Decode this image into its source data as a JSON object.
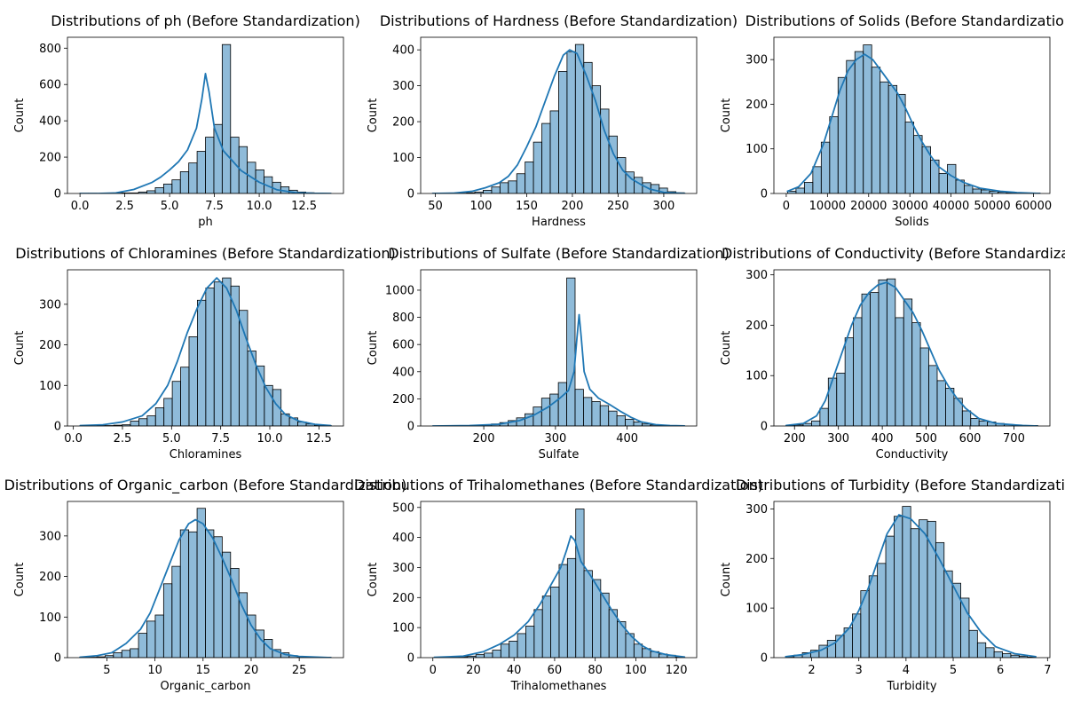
{
  "figure": {
    "background": "#ffffff",
    "bar_fill": "#1f77b4",
    "bar_alpha": 0.5,
    "bar_edge": "#000000",
    "kde_color": "#1f77b4"
  },
  "chart_data": [
    {
      "type": "bar",
      "title": "Distributions of ph (Before Standardization)",
      "xlabel": "ph",
      "ylabel": "Count",
      "xlim": [
        -0.7,
        14.7
      ],
      "ylim": [
        0,
        860
      ],
      "xticks": [
        0.0,
        2.5,
        5.0,
        7.5,
        10.0,
        12.5
      ],
      "xtick_labels": [
        "0.0",
        "2.5",
        "5.0",
        "7.5",
        "10.0",
        "12.5"
      ],
      "yticks": [
        0,
        200,
        400,
        600,
        800
      ],
      "bins": {
        "start": 0.0,
        "width": 0.4667
      },
      "values": [
        1,
        1,
        0,
        2,
        2,
        3,
        3,
        8,
        15,
        32,
        52,
        75,
        120,
        168,
        232,
        310,
        380,
        820,
        310,
        258,
        172,
        130,
        92,
        62,
        37,
        18,
        8,
        4,
        2,
        1
      ],
      "kde": [
        [
          0,
          0
        ],
        [
          1,
          0
        ],
        [
          2,
          3
        ],
        [
          3,
          22
        ],
        [
          4,
          60
        ],
        [
          4.5,
          90
        ],
        [
          5,
          130
        ],
        [
          5.5,
          175
        ],
        [
          6,
          240
        ],
        [
          6.5,
          360
        ],
        [
          6.8,
          520
        ],
        [
          7,
          660
        ],
        [
          7.2,
          560
        ],
        [
          7.5,
          360
        ],
        [
          8,
          235
        ],
        [
          8.5,
          180
        ],
        [
          9,
          125
        ],
        [
          10,
          62
        ],
        [
          11,
          20
        ],
        [
          12,
          5
        ],
        [
          13,
          1
        ],
        [
          14,
          0
        ]
      ]
    },
    {
      "type": "bar",
      "title": "Distributions of Hardness (Before Standardization)",
      "xlabel": "Hardness",
      "ylabel": "Count",
      "xlim": [
        34,
        336
      ],
      "ylim": [
        0,
        435
      ],
      "xticks": [
        50,
        100,
        150,
        200,
        250,
        300
      ],
      "xtick_labels": [
        "50",
        "100",
        "150",
        "200",
        "250",
        "300"
      ],
      "yticks": [
        0,
        100,
        200,
        300,
        400
      ],
      "bins": {
        "start": 47.4,
        "width": 9.169
      },
      "values": [
        1,
        0,
        1,
        1,
        2,
        4,
        9,
        18,
        30,
        35,
        55,
        88,
        143,
        195,
        230,
        340,
        395,
        415,
        365,
        300,
        235,
        160,
        100,
        60,
        45,
        30,
        25,
        15,
        5,
        2
      ],
      "kde": [
        [
          47,
          0
        ],
        [
          70,
          1
        ],
        [
          90,
          6
        ],
        [
          105,
          16
        ],
        [
          120,
          30
        ],
        [
          130,
          48
        ],
        [
          140,
          80
        ],
        [
          150,
          130
        ],
        [
          160,
          185
        ],
        [
          170,
          255
        ],
        [
          180,
          325
        ],
        [
          190,
          385
        ],
        [
          197,
          400
        ],
        [
          205,
          390
        ],
        [
          215,
          330
        ],
        [
          225,
          260
        ],
        [
          235,
          175
        ],
        [
          245,
          110
        ],
        [
          255,
          65
        ],
        [
          265,
          40
        ],
        [
          275,
          25
        ],
        [
          285,
          12
        ],
        [
          300,
          3
        ],
        [
          323,
          0
        ]
      ]
    },
    {
      "type": "bar",
      "title": "Distributions of Solids (Before Standardization)",
      "xlabel": "Solids",
      "ylabel": "Count",
      "xlim": [
        -3000,
        64000
      ],
      "ylim": [
        0,
        350
      ],
      "xticks": [
        0,
        10000,
        20000,
        30000,
        40000,
        50000,
        60000
      ],
      "xtick_labels": [
        "0",
        "10000",
        "20000",
        "30000",
        "40000",
        "50000",
        "60000"
      ],
      "yticks": [
        0,
        100,
        200,
        300
      ],
      "bins": {
        "start": 320,
        "width": 2042
      },
      "values": [
        5,
        12,
        25,
        60,
        115,
        172,
        260,
        298,
        318,
        333,
        283,
        250,
        242,
        222,
        160,
        130,
        105,
        75,
        45,
        65,
        30,
        18,
        10,
        8,
        5,
        3,
        2,
        1,
        1,
        1
      ],
      "kde": [
        [
          300,
          5
        ],
        [
          3000,
          15
        ],
        [
          6000,
          45
        ],
        [
          9000,
          110
        ],
        [
          11000,
          170
        ],
        [
          13000,
          230
        ],
        [
          15000,
          275
        ],
        [
          17000,
          300
        ],
        [
          19000,
          312
        ],
        [
          21000,
          300
        ],
        [
          23000,
          275
        ],
        [
          25000,
          250
        ],
        [
          27000,
          225
        ],
        [
          29000,
          190
        ],
        [
          31000,
          150
        ],
        [
          33000,
          115
        ],
        [
          35000,
          85
        ],
        [
          37000,
          60
        ],
        [
          40000,
          40
        ],
        [
          43000,
          25
        ],
        [
          47000,
          12
        ],
        [
          52000,
          5
        ],
        [
          56000,
          2
        ],
        [
          61600,
          0
        ]
      ]
    },
    {
      "type": "bar",
      "title": "Distributions of Chloramines (Before Standardization)",
      "xlabel": "Chloramines",
      "ylabel": "Count",
      "xlim": [
        -0.3,
        13.75
      ],
      "ylim": [
        0,
        385
      ],
      "xticks": [
        0.0,
        2.5,
        5.0,
        7.5,
        10.0,
        12.5
      ],
      "xtick_labels": [
        "0.0",
        "2.5",
        "5.0",
        "7.5",
        "10.0",
        "12.5"
      ],
      "yticks": [
        0,
        100,
        200,
        300
      ],
      "bins": {
        "start": 0.35,
        "width": 0.426
      },
      "values": [
        1,
        0,
        1,
        1,
        2,
        3,
        12,
        18,
        25,
        45,
        68,
        110,
        145,
        220,
        310,
        340,
        355,
        365,
        345,
        285,
        185,
        148,
        100,
        90,
        30,
        20,
        10,
        5,
        2,
        1
      ],
      "kde": [
        [
          0.35,
          1
        ],
        [
          1.5,
          3
        ],
        [
          2.5,
          10
        ],
        [
          3.5,
          25
        ],
        [
          4.2,
          55
        ],
        [
          4.8,
          100
        ],
        [
          5.3,
          160
        ],
        [
          5.8,
          230
        ],
        [
          6.3,
          290
        ],
        [
          6.8,
          340
        ],
        [
          7.3,
          365
        ],
        [
          7.8,
          340
        ],
        [
          8.3,
          285
        ],
        [
          8.8,
          215
        ],
        [
          9.3,
          150
        ],
        [
          9.8,
          95
        ],
        [
          10.3,
          55
        ],
        [
          10.8,
          28
        ],
        [
          11.5,
          12
        ],
        [
          12.3,
          4
        ],
        [
          13.1,
          1
        ]
      ]
    },
    {
      "type": "bar",
      "title": "Distributions of Sulfate (Before Standardization)",
      "xlabel": "Sulfate",
      "ylabel": "Count",
      "xlim": [
        112,
        497
      ],
      "ylim": [
        0,
        1150
      ],
      "xticks": [
        200,
        300,
        400
      ],
      "xtick_labels": [
        "200",
        "300",
        "400"
      ],
      "yticks": [
        0,
        200,
        400,
        600,
        800,
        1000
      ],
      "bins": {
        "start": 129,
        "width": 11.67
      },
      "values": [
        1,
        1,
        2,
        2,
        3,
        5,
        8,
        15,
        25,
        40,
        60,
        90,
        140,
        205,
        235,
        320,
        1090,
        270,
        210,
        180,
        150,
        110,
        75,
        50,
        30,
        15,
        8,
        4,
        2,
        1
      ],
      "kde": [
        [
          129,
          0
        ],
        [
          180,
          3
        ],
        [
          220,
          12
        ],
        [
          250,
          40
        ],
        [
          270,
          80
        ],
        [
          290,
          140
        ],
        [
          305,
          200
        ],
        [
          318,
          260
        ],
        [
          326,
          400
        ],
        [
          330,
          650
        ],
        [
          333,
          820
        ],
        [
          336,
          650
        ],
        [
          340,
          400
        ],
        [
          348,
          270
        ],
        [
          360,
          205
        ],
        [
          375,
          160
        ],
        [
          390,
          110
        ],
        [
          405,
          65
        ],
        [
          420,
          30
        ],
        [
          440,
          10
        ],
        [
          460,
          3
        ],
        [
          480,
          1
        ]
      ]
    },
    {
      "type": "bar",
      "title": "Distributions of Conductivity (Before Standardization)",
      "xlabel": "Conductivity",
      "ylabel": "Count",
      "xlim": [
        153,
        782
      ],
      "ylim": [
        0,
        310
      ],
      "xticks": [
        200,
        300,
        400,
        500,
        600,
        700
      ],
      "xtick_labels": [
        "200",
        "300",
        "400",
        "500",
        "600",
        "700"
      ],
      "yticks": [
        0,
        100,
        200,
        300
      ],
      "bins": {
        "start": 181.5,
        "width": 19.09
      },
      "values": [
        1,
        2,
        5,
        10,
        35,
        95,
        105,
        175,
        215,
        262,
        265,
        290,
        292,
        215,
        252,
        205,
        155,
        120,
        90,
        75,
        55,
        30,
        15,
        10,
        8,
        5,
        3,
        2,
        1,
        1
      ],
      "kde": [
        [
          181,
          1
        ],
        [
          220,
          5
        ],
        [
          250,
          20
        ],
        [
          270,
          50
        ],
        [
          290,
          100
        ],
        [
          310,
          150
        ],
        [
          330,
          200
        ],
        [
          350,
          240
        ],
        [
          370,
          265
        ],
        [
          390,
          280
        ],
        [
          410,
          285
        ],
        [
          430,
          275
        ],
        [
          450,
          250
        ],
        [
          470,
          225
        ],
        [
          490,
          190
        ],
        [
          510,
          150
        ],
        [
          530,
          110
        ],
        [
          550,
          80
        ],
        [
          570,
          55
        ],
        [
          590,
          35
        ],
        [
          620,
          15
        ],
        [
          660,
          5
        ],
        [
          720,
          1
        ],
        [
          753,
          0
        ]
      ]
    },
    {
      "type": "bar",
      "title": "Distributions of Organic_carbon (Before Standardization)",
      "xlabel": "Organic_carbon",
      "ylabel": "Count",
      "xlim": [
        0.9,
        29.6
      ],
      "ylim": [
        0,
        385
      ],
      "xticks": [
        5,
        10,
        15,
        20,
        25
      ],
      "xtick_labels": [
        "5",
        "10",
        "15",
        "20",
        "25"
      ],
      "yticks": [
        0,
        100,
        200,
        300
      ],
      "bins": {
        "start": 2.2,
        "width": 0.87
      },
      "values": [
        1,
        1,
        2,
        5,
        12,
        18,
        22,
        60,
        90,
        105,
        182,
        225,
        315,
        310,
        368,
        315,
        298,
        260,
        220,
        160,
        105,
        68,
        45,
        20,
        12,
        5,
        2,
        1,
        1,
        1
      ],
      "kde": [
        [
          2.2,
          1
        ],
        [
          4,
          5
        ],
        [
          5.5,
          12
        ],
        [
          7,
          35
        ],
        [
          8.5,
          70
        ],
        [
          9.5,
          110
        ],
        [
          10.5,
          170
        ],
        [
          11.5,
          230
        ],
        [
          12.5,
          290
        ],
        [
          13.5,
          330
        ],
        [
          14.2,
          340
        ],
        [
          15,
          330
        ],
        [
          16,
          295
        ],
        [
          17,
          245
        ],
        [
          18,
          190
        ],
        [
          19,
          130
        ],
        [
          20,
          80
        ],
        [
          21,
          45
        ],
        [
          22,
          22
        ],
        [
          23.5,
          8
        ],
        [
          25,
          3
        ],
        [
          28.3,
          0
        ]
      ]
    },
    {
      "type": "bar",
      "title": "Distributions of Trihalomethanes (Before Standardization)",
      "xlabel": "Trihalomethanes",
      "ylabel": "Count",
      "xlim": [
        -6,
        130
      ],
      "ylim": [
        0,
        520
      ],
      "xticks": [
        0,
        20,
        40,
        60,
        80,
        100,
        120
      ],
      "xtick_labels": [
        "0",
        "20",
        "40",
        "60",
        "80",
        "100",
        "120"
      ],
      "yticks": [
        0,
        100,
        200,
        300,
        400,
        500
      ],
      "bins": {
        "start": 0.7,
        "width": 4.1
      },
      "values": [
        1,
        1,
        2,
        3,
        5,
        10,
        15,
        25,
        45,
        55,
        80,
        105,
        160,
        205,
        235,
        310,
        330,
        495,
        290,
        260,
        215,
        160,
        120,
        80,
        45,
        30,
        20,
        12,
        8,
        3
      ],
      "kde": [
        [
          0.7,
          1
        ],
        [
          15,
          5
        ],
        [
          25,
          20
        ],
        [
          33,
          45
        ],
        [
          40,
          75
        ],
        [
          47,
          120
        ],
        [
          53,
          180
        ],
        [
          58,
          240
        ],
        [
          63,
          300
        ],
        [
          66,
          360
        ],
        [
          68,
          405
        ],
        [
          70,
          390
        ],
        [
          73,
          320
        ],
        [
          78,
          270
        ],
        [
          83,
          215
        ],
        [
          88,
          160
        ],
        [
          93,
          110
        ],
        [
          98,
          70
        ],
        [
          103,
          40
        ],
        [
          108,
          22
        ],
        [
          115,
          10
        ],
        [
          124,
          2
        ]
      ]
    },
    {
      "type": "bar",
      "title": "Distributions of Turbidity (Before Standardization)",
      "xlabel": "Turbidity",
      "ylabel": "Count",
      "xlim": [
        1.2,
        7.05
      ],
      "ylim": [
        0,
        315
      ],
      "xticks": [
        2,
        3,
        4,
        5,
        6,
        7
      ],
      "xtick_labels": [
        "2",
        "3",
        "4",
        "5",
        "6",
        "7"
      ],
      "yticks": [
        0,
        100,
        200,
        300
      ],
      "bins": {
        "start": 1.45,
        "width": 0.1767
      },
      "values": [
        2,
        5,
        10,
        15,
        25,
        35,
        45,
        60,
        88,
        135,
        165,
        190,
        245,
        285,
        305,
        260,
        278,
        275,
        232,
        175,
        150,
        120,
        55,
        30,
        20,
        12,
        8,
        5,
        3,
        1
      ],
      "kde": [
        [
          1.45,
          2
        ],
        [
          1.8,
          6
        ],
        [
          2.2,
          15
        ],
        [
          2.5,
          30
        ],
        [
          2.8,
          60
        ],
        [
          3.0,
          95
        ],
        [
          3.2,
          140
        ],
        [
          3.4,
          195
        ],
        [
          3.6,
          250
        ],
        [
          3.85,
          288
        ],
        [
          4.1,
          280
        ],
        [
          4.4,
          250
        ],
        [
          4.7,
          200
        ],
        [
          5.0,
          145
        ],
        [
          5.3,
          90
        ],
        [
          5.6,
          50
        ],
        [
          5.9,
          22
        ],
        [
          6.3,
          8
        ],
        [
          6.75,
          2
        ]
      ]
    }
  ]
}
